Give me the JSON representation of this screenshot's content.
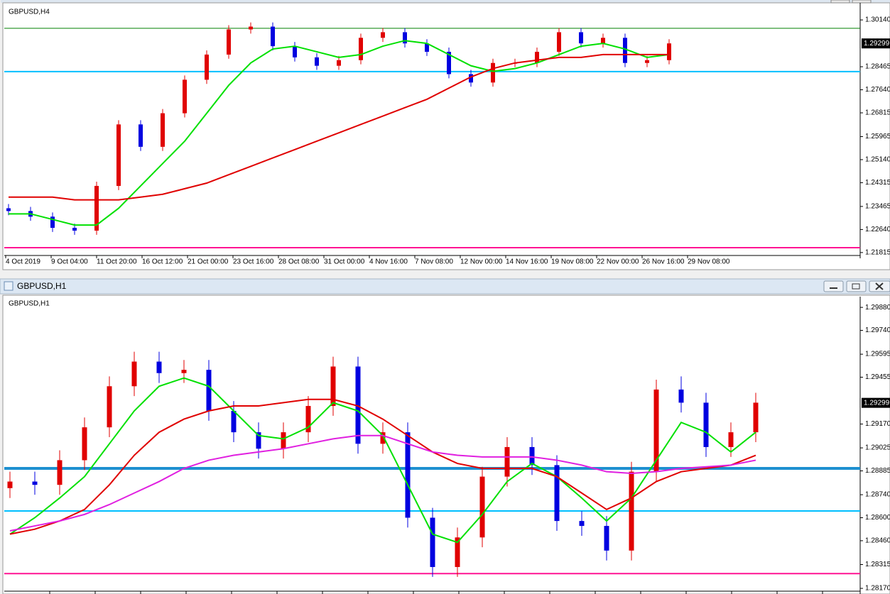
{
  "window_title": "GBPUSD,H1",
  "chart_data": [
    {
      "type": "candlestick",
      "title": "GBPUSD,H4",
      "ylim": [
        1.2171,
        1.3065
      ],
      "yticks": [
        {
          "value": 1.3014,
          "label": "1.30140"
        },
        1.28465,
        {
          "value": 1.2764,
          "label": "1.27640"
        },
        1.26815,
        1.25965,
        {
          "value": 1.2514,
          "label": "1.25140"
        },
        1.24315,
        1.23465,
        {
          "value": 1.2264,
          "label": "1.22640"
        },
        1.21815
      ],
      "x_tick_labels": [
        "4 Oct 2019",
        "9 Oct 04:00",
        "11 Oct 20:00",
        "16 Oct 12:00",
        "21 Oct 00:00",
        "23 Oct 16:00",
        "28 Oct 08:00",
        "31 Oct 00:00",
        "4 Nov 16:00",
        "7 Nov 08:00",
        "12 Nov 00:00",
        "14 Nov 16:00",
        "19 Nov 08:00",
        "22 Nov 00:00",
        "26 Nov 16:00",
        "29 Nov 08:00"
      ],
      "current_price": 1.29299,
      "up_color": "#e00000",
      "down_color": "#0000e0",
      "open": [
        1.234,
        1.233,
        1.231,
        1.227,
        1.226,
        1.242,
        1.264,
        1.256,
        1.268,
        1.28,
        1.289,
        1.298,
        1.299,
        1.292,
        1.288,
        1.285,
        1.287,
        1.295,
        1.297,
        1.293,
        1.29,
        1.282,
        1.279,
        1.286,
        1.286,
        1.29,
        1.297,
        1.293,
        1.295,
        1.286,
        1.287
      ],
      "high": [
        1.2355,
        1.2345,
        1.2325,
        1.2285,
        1.2435,
        1.2655,
        1.2655,
        1.2695,
        1.2815,
        1.2905,
        1.2995,
        1.3005,
        1.3005,
        1.2935,
        1.2895,
        1.2885,
        1.2965,
        1.2985,
        1.2985,
        1.2945,
        1.2915,
        1.2835,
        1.2875,
        1.2875,
        1.2915,
        1.2985,
        1.2985,
        1.2965,
        1.2965,
        1.2885,
        1.2945
      ],
      "low": [
        1.2315,
        1.2295,
        1.2255,
        1.2245,
        1.2245,
        1.2405,
        1.2545,
        1.2545,
        1.2665,
        1.2785,
        1.2875,
        1.2965,
        1.2905,
        1.2865,
        1.2835,
        1.2835,
        1.2855,
        1.2935,
        1.2915,
        1.2885,
        1.2805,
        1.2775,
        1.2775,
        1.2845,
        1.2845,
        1.2885,
        1.2915,
        1.2915,
        1.2845,
        1.2845,
        1.2855
      ],
      "close": [
        1.233,
        1.231,
        1.227,
        1.226,
        1.242,
        1.264,
        1.256,
        1.268,
        1.28,
        1.289,
        1.298,
        1.299,
        1.292,
        1.288,
        1.285,
        1.287,
        1.295,
        1.297,
        1.293,
        1.29,
        1.282,
        1.279,
        1.286,
        1.286,
        1.29,
        1.297,
        1.293,
        1.295,
        1.286,
        1.287,
        1.293
      ],
      "moving_averages": [
        {
          "color": "#00e000",
          "values": [
            1.232,
            1.232,
            1.23,
            1.228,
            1.228,
            1.234,
            1.242,
            1.25,
            1.258,
            1.268,
            1.278,
            1.286,
            1.291,
            1.292,
            1.29,
            1.288,
            1.289,
            1.292,
            1.294,
            1.293,
            1.289,
            1.285,
            1.283,
            1.284,
            1.286,
            1.289,
            1.292,
            1.293,
            1.291,
            1.288,
            1.289
          ]
        },
        {
          "color": "#e00000",
          "values": [
            1.238,
            1.238,
            1.238,
            1.237,
            1.237,
            1.237,
            1.238,
            1.239,
            1.241,
            1.243,
            1.246,
            1.249,
            1.252,
            1.255,
            1.258,
            1.261,
            1.264,
            1.267,
            1.27,
            1.273,
            1.277,
            1.281,
            1.284,
            1.286,
            1.287,
            1.288,
            1.288,
            1.289,
            1.289,
            1.289,
            1.289
          ]
        }
      ],
      "levels": [
        {
          "value": 1.2984,
          "color": "#008000",
          "line_width": 1
        },
        {
          "value": 1.2829,
          "color": "#00bfff",
          "line_width": 2
        },
        {
          "value": 1.2199,
          "color": "#ff1493",
          "line_width": 2
        }
      ]
    },
    {
      "type": "candlestick",
      "title": "GBPUSD,H1",
      "ylim": [
        1.28153,
        1.29928
      ],
      "yticks": [
        {
          "value": 1.2988,
          "label": "1.29880"
        },
        {
          "value": 1.2974,
          "label": "1.29740"
        },
        1.29595,
        1.29455,
        {
          "value": 1.2917,
          "label": "1.29170"
        },
        1.29025,
        1.28885,
        {
          "value": 1.2874,
          "label": "1.28740"
        },
        {
          "value": 1.286,
          "label": "1.28600"
        },
        {
          "value": 1.2846,
          "label": "1.28460"
        },
        1.28315,
        {
          "value": 1.2817,
          "label": "1.28170"
        }
      ],
      "current_price": 1.29299,
      "up_color": "#e00000",
      "down_color": "#0000e0",
      "open": [
        1.2878,
        1.2882,
        1.288,
        1.2895,
        1.2915,
        1.294,
        1.2955,
        1.2948,
        1.295,
        1.2925,
        1.2912,
        1.2902,
        1.2912,
        1.2928,
        1.2952,
        1.2905,
        1.2912,
        1.286,
        1.283,
        1.2848,
        1.2885,
        1.2903,
        1.2892,
        1.2858,
        1.2855,
        1.284,
        1.2888,
        1.2938,
        1.293,
        1.2903,
        1.2912
      ],
      "high": [
        1.2888,
        1.2888,
        1.2901,
        1.2921,
        1.2946,
        1.2961,
        1.2961,
        1.2956,
        1.2956,
        1.2931,
        1.2918,
        1.2918,
        1.2934,
        1.2958,
        1.2958,
        1.2918,
        1.2918,
        1.2866,
        1.2854,
        1.2891,
        1.2909,
        1.2909,
        1.2898,
        1.2864,
        1.2861,
        1.2894,
        1.2944,
        1.2946,
        1.2936,
        1.2918,
        1.2936
      ],
      "low": [
        1.2872,
        1.2874,
        1.2874,
        1.2889,
        1.2909,
        1.2934,
        1.2942,
        1.2942,
        1.2919,
        1.2906,
        1.2896,
        1.2896,
        1.2906,
        1.2922,
        1.2899,
        1.2899,
        1.2854,
        1.2824,
        1.2824,
        1.2842,
        1.2879,
        1.2886,
        1.2852,
        1.2849,
        1.2834,
        1.2834,
        1.2882,
        1.2924,
        1.2897,
        1.2897,
        1.2906
      ],
      "close": [
        1.2882,
        1.288,
        1.2895,
        1.2915,
        1.294,
        1.2955,
        1.2948,
        1.295,
        1.2925,
        1.2912,
        1.2902,
        1.2912,
        1.2928,
        1.2952,
        1.2905,
        1.2912,
        1.286,
        1.283,
        1.2848,
        1.2885,
        1.2903,
        1.2892,
        1.2858,
        1.2855,
        1.284,
        1.2888,
        1.2938,
        1.293,
        1.2903,
        1.2912,
        1.293
      ],
      "moving_averages": [
        {
          "color": "#00e000",
          "values": [
            1.285,
            1.286,
            1.2872,
            1.2885,
            1.2905,
            1.2925,
            1.294,
            1.2945,
            1.294,
            1.2925,
            1.291,
            1.2908,
            1.2915,
            1.293,
            1.2925,
            1.291,
            1.288,
            1.285,
            1.2845,
            1.2862,
            1.2882,
            1.2893,
            1.2885,
            1.2872,
            1.2858,
            1.2872,
            1.2895,
            1.2918,
            1.2912,
            1.29,
            1.2912
          ]
        },
        {
          "color": "#e00000",
          "values": [
            1.285,
            1.2853,
            1.2858,
            1.2865,
            1.288,
            1.2898,
            1.2912,
            1.292,
            1.2925,
            1.2928,
            1.2928,
            1.293,
            1.2932,
            1.2932,
            1.2928,
            1.292,
            1.291,
            1.29,
            1.2893,
            1.289,
            1.289,
            1.289,
            1.2885,
            1.2875,
            1.2865,
            1.2872,
            1.2882,
            1.2888,
            1.289,
            1.2892,
            1.2898
          ]
        },
        {
          "color": "#e020e0",
          "values": [
            1.2852,
            1.2855,
            1.2858,
            1.2862,
            1.2868,
            1.2875,
            1.2882,
            1.289,
            1.2895,
            1.2898,
            1.29,
            1.2902,
            1.2905,
            1.2908,
            1.291,
            1.291,
            1.2905,
            1.29,
            1.2898,
            1.2897,
            1.2897,
            1.2897,
            1.2895,
            1.2892,
            1.2888,
            1.2887,
            1.2888,
            1.289,
            1.2891,
            1.2892,
            1.2895
          ]
        }
      ],
      "levels": [
        {
          "value": 1.289,
          "color": "#1e90d0",
          "line_width": 4
        },
        {
          "value": 1.28641,
          "color": "#00bfff",
          "line_width": 2
        },
        {
          "value": 1.2826,
          "color": "#ff1493",
          "line_width": 2
        }
      ]
    }
  ]
}
